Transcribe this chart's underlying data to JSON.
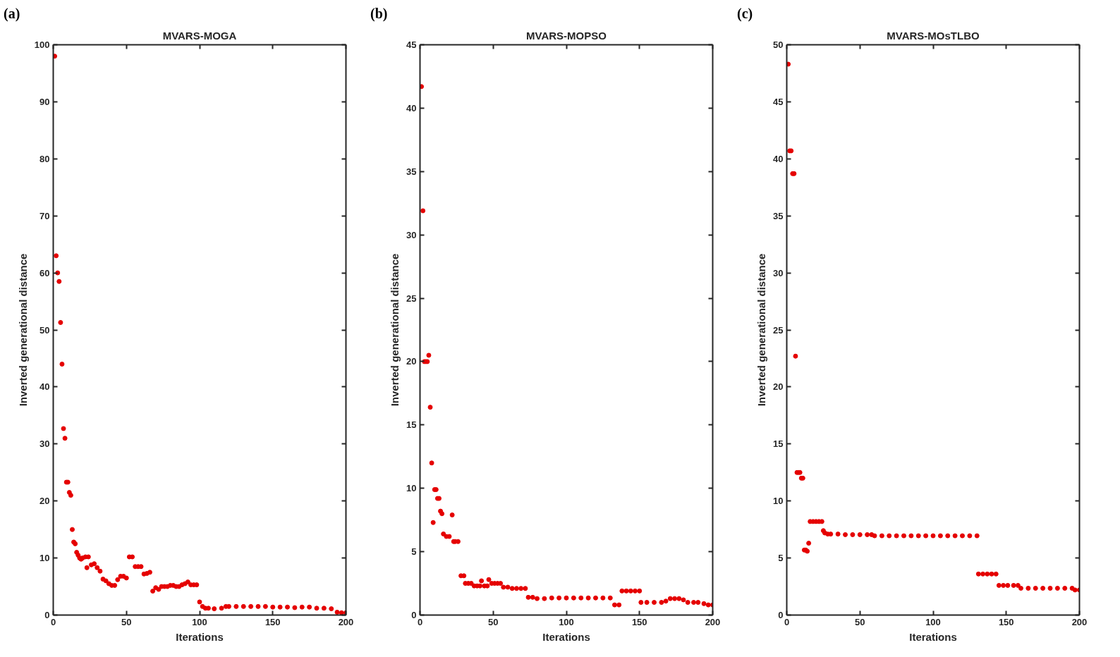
{
  "chart_data": [
    {
      "type": "scatter",
      "title": "MVARS-MOGA",
      "xlabel": "Iterations",
      "ylabel": "Inverted generational distance",
      "annotations": [
        "(a)"
      ],
      "marker": "circle",
      "xlim": [
        0,
        200
      ],
      "ylim": [
        0,
        100
      ],
      "xticks": [
        0,
        50,
        100,
        150,
        200
      ],
      "yticks": [
        0,
        10,
        20,
        30,
        40,
        50,
        60,
        70,
        80,
        90,
        100
      ],
      "series": [
        {
          "color": "#e50000",
          "x": [
            1,
            2,
            3,
            4,
            5,
            6,
            7,
            8,
            9,
            10,
            11,
            12,
            13,
            14,
            15,
            16,
            17,
            18,
            19,
            20,
            22,
            23,
            24,
            26,
            28,
            30,
            32,
            34,
            36,
            38,
            40,
            42,
            44,
            46,
            48,
            50,
            52,
            54,
            56,
            58,
            60,
            62,
            64,
            66,
            68,
            70,
            72,
            74,
            76,
            78,
            80,
            82,
            84,
            86,
            88,
            90,
            92,
            94,
            96,
            98,
            100,
            102,
            104,
            106,
            110,
            115,
            118,
            120,
            125,
            130,
            135,
            140,
            145,
            150,
            155,
            160,
            165,
            170,
            175,
            180,
            185,
            190,
            194,
            197,
            200
          ],
          "values": [
            98,
            63,
            60,
            58.5,
            51.3,
            44,
            32.7,
            31,
            23.3,
            23.3,
            21.5,
            21,
            15,
            12.8,
            12.5,
            11,
            10.5,
            10,
            9.8,
            10,
            10.2,
            8.3,
            10.2,
            8.8,
            9,
            8.3,
            7.7,
            6.3,
            6,
            5.5,
            5.2,
            5.2,
            6.2,
            6.8,
            6.8,
            6.5,
            10.2,
            10.2,
            8.5,
            8.5,
            8.5,
            7.2,
            7.3,
            7.5,
            4.2,
            4.8,
            4.5,
            5,
            5,
            5,
            5.2,
            5.2,
            5,
            5,
            5.3,
            5.5,
            5.8,
            5.3,
            5.3,
            5.3,
            2.3,
            1.5,
            1.2,
            1.2,
            1.1,
            1.2,
            1.5,
            1.5,
            1.5,
            1.5,
            1.5,
            1.5,
            1.5,
            1.4,
            1.4,
            1.4,
            1.3,
            1.4,
            1.4,
            1.2,
            1.2,
            1.1,
            0.5,
            0.4,
            0.4
          ]
        }
      ]
    },
    {
      "type": "scatter",
      "title": "MVARS-MOPSO",
      "xlabel": "Iterations",
      "ylabel": "Inverted generational distance",
      "annotations": [
        "(b)"
      ],
      "marker": "circle",
      "xlim": [
        0,
        200
      ],
      "ylim": [
        0,
        45
      ],
      "xticks": [
        0,
        50,
        100,
        150,
        200
      ],
      "yticks": [
        0,
        5,
        10,
        15,
        20,
        25,
        30,
        35,
        40,
        45
      ],
      "series": [
        {
          "color": "#e50000",
          "x": [
            1,
            2,
            3,
            4,
            5,
            6,
            7,
            8,
            9,
            10,
            11,
            12,
            13,
            14,
            15,
            16,
            18,
            20,
            22,
            23,
            24,
            26,
            28,
            30,
            31,
            33,
            35,
            37,
            39,
            41,
            42,
            44,
            46,
            47,
            49,
            51,
            53,
            55,
            57,
            60,
            63,
            66,
            69,
            72,
            74,
            77,
            80,
            85,
            90,
            95,
            100,
            105,
            110,
            115,
            120,
            125,
            130,
            133,
            136,
            138,
            141,
            144,
            147,
            150,
            151,
            155,
            160,
            165,
            168,
            171,
            174,
            177,
            180,
            183,
            187,
            190,
            194,
            197,
            200
          ],
          "values": [
            41.7,
            31.9,
            20,
            20,
            20,
            20.5,
            16.4,
            12,
            7.3,
            9.9,
            9.9,
            9.2,
            9.2,
            8.2,
            8,
            6.4,
            6.2,
            6.2,
            7.9,
            5.8,
            5.8,
            5.8,
            3.1,
            3.1,
            2.5,
            2.5,
            2.5,
            2.3,
            2.3,
            2.3,
            2.7,
            2.3,
            2.3,
            2.8,
            2.5,
            2.5,
            2.5,
            2.5,
            2.2,
            2.2,
            2.1,
            2.1,
            2.1,
            2.1,
            1.4,
            1.4,
            1.3,
            1.3,
            1.35,
            1.35,
            1.35,
            1.35,
            1.35,
            1.35,
            1.35,
            1.35,
            1.35,
            0.8,
            0.8,
            1.9,
            1.9,
            1.9,
            1.9,
            1.9,
            1,
            1,
            1,
            1,
            1.1,
            1.3,
            1.3,
            1.3,
            1.2,
            1,
            1,
            1,
            0.9,
            0.8,
            0.8
          ]
        }
      ]
    },
    {
      "type": "scatter",
      "title": "MVARS-MOsTLBO",
      "xlabel": "Iterations",
      "ylabel": "Inverted generational distance",
      "annotations": [
        "(c)"
      ],
      "marker": "circle",
      "xlim": [
        0,
        200
      ],
      "ylim": [
        0,
        50
      ],
      "xticks": [
        0,
        50,
        100,
        150,
        200
      ],
      "yticks": [
        0,
        5,
        10,
        15,
        20,
        25,
        30,
        35,
        40,
        45,
        50
      ],
      "series": [
        {
          "color": "#e50000",
          "x": [
            1,
            2,
            3,
            4,
            5,
            6,
            7,
            8,
            9,
            10,
            11,
            12,
            13,
            14,
            15,
            16,
            18,
            20,
            22,
            24,
            25,
            26,
            28,
            30,
            35,
            40,
            45,
            50,
            55,
            58,
            60,
            65,
            70,
            75,
            80,
            85,
            90,
            95,
            100,
            105,
            110,
            115,
            120,
            125,
            130,
            131,
            134,
            137,
            140,
            143,
            145,
            148,
            151,
            155,
            158,
            160,
            165,
            170,
            175,
            180,
            185,
            190,
            195,
            197,
            200
          ],
          "values": [
            48.3,
            40.7,
            40.7,
            38.7,
            38.7,
            22.7,
            12.5,
            12.5,
            12.5,
            12,
            12,
            5.7,
            5.7,
            5.6,
            6.3,
            8.2,
            8.2,
            8.2,
            8.2,
            8.2,
            7.4,
            7.2,
            7.1,
            7.1,
            7.1,
            7.05,
            7.05,
            7.05,
            7.05,
            7.05,
            6.95,
            6.95,
            6.95,
            6.95,
            6.95,
            6.95,
            6.95,
            6.95,
            6.95,
            6.95,
            6.95,
            6.95,
            6.95,
            6.95,
            6.95,
            3.6,
            3.6,
            3.6,
            3.6,
            3.6,
            2.6,
            2.6,
            2.6,
            2.6,
            2.6,
            2.35,
            2.35,
            2.35,
            2.35,
            2.35,
            2.35,
            2.35,
            2.35,
            2.2,
            2.2
          ]
        }
      ]
    }
  ]
}
